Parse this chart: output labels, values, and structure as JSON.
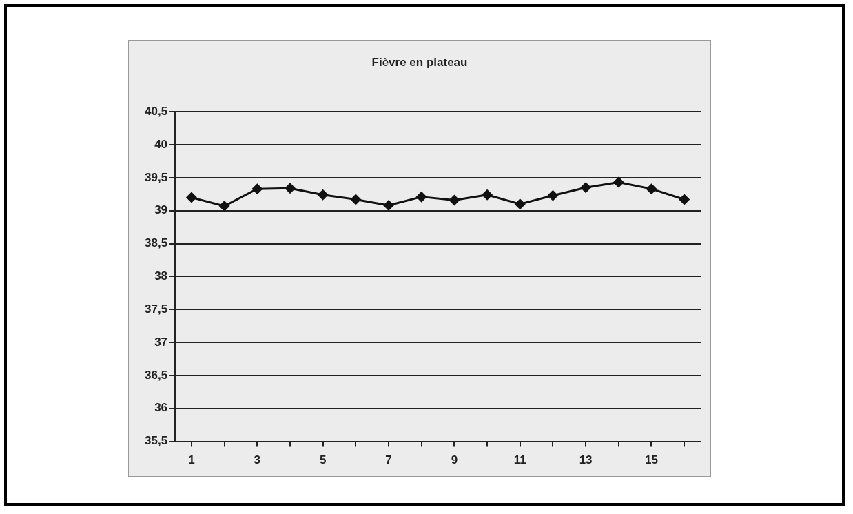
{
  "chart_data": {
    "type": "line",
    "title": "Fièvre en plateau",
    "x": [
      1,
      2,
      3,
      4,
      5,
      6,
      7,
      8,
      9,
      10,
      11,
      12,
      13,
      14,
      15,
      16
    ],
    "xlim": [
      0.5,
      16.5
    ],
    "xticks": [
      1,
      {
        "value": 2,
        "label": null
      },
      3,
      {
        "value": 4,
        "label": null
      },
      5,
      {
        "value": 6,
        "label": null
      },
      7,
      {
        "value": 8,
        "label": null
      },
      9,
      {
        "value": 10,
        "label": null
      },
      11,
      {
        "value": 12,
        "label": null
      },
      13,
      {
        "value": 14,
        "label": null
      },
      15,
      {
        "value": 16,
        "label": null
      }
    ],
    "series": [
      {
        "color": "#111111",
        "values": [
          39.2,
          39.07,
          39.33,
          39.34,
          39.24,
          39.17,
          39.08,
          39.21,
          39.16,
          39.24,
          39.1,
          39.23,
          39.35,
          39.43,
          39.33,
          39.17
        ]
      }
    ],
    "ylim": [
      35.5,
      40.5
    ],
    "yticks": [
      {
        "value": 35.5,
        "label": "35,5"
      },
      36,
      {
        "value": 36.5,
        "label": "36,5"
      },
      37,
      {
        "value": 37.5,
        "label": "37,5"
      },
      38,
      {
        "value": 38.5,
        "label": "38,5"
      },
      39,
      {
        "value": 39.5,
        "label": "39,5"
      },
      40,
      {
        "value": 40.5,
        "label": "40,5"
      }
    ],
    "grid": "y",
    "legend": false,
    "marker": "diamond",
    "line_style": "solid"
  }
}
